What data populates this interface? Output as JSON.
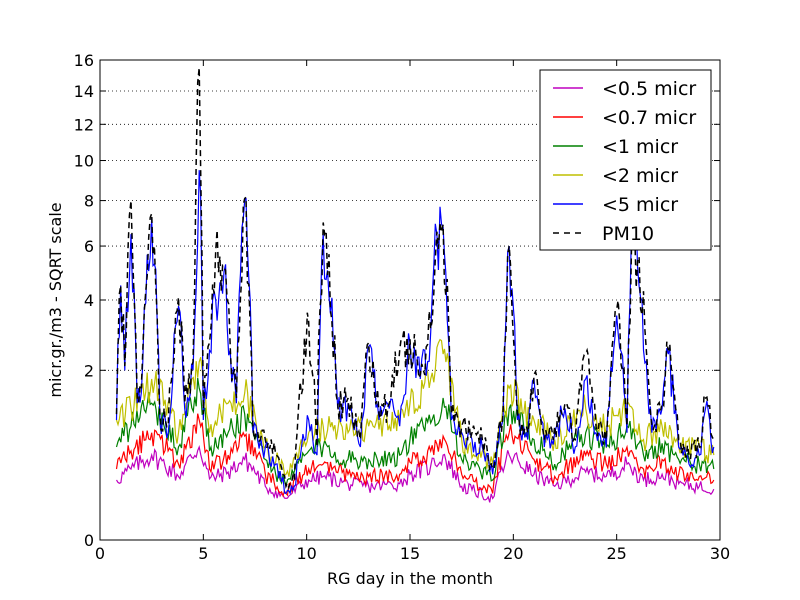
{
  "chart_data": {
    "type": "line",
    "title": "",
    "xlabel": "RG day in the month",
    "ylabel": "micr.gr./m3 - SQRT scale",
    "y_scale": "sqrt",
    "xlim": [
      0,
      30
    ],
    "ylim": [
      0,
      16
    ],
    "x_ticks": [
      0,
      5,
      10,
      15,
      20,
      25,
      30
    ],
    "y_ticks": [
      0,
      2,
      4,
      6,
      8,
      10,
      12,
      14,
      16
    ],
    "grid": "horizontal dotted",
    "legend_position": "top-right",
    "series": [
      {
        "name": "<0.5 micr",
        "color": "#bf00bf",
        "style": "solid",
        "scale": 0.05,
        "x": [
          0.8,
          1.5,
          2.5,
          3.8,
          4.8,
          5.3,
          6.2,
          7.0,
          8.0,
          9.0,
          10.1,
          10.8,
          12.0,
          13.0,
          14.5,
          15.0,
          16.0,
          16.6,
          17.5,
          19.0,
          19.8,
          21.0,
          22.0,
          23.5,
          24.5,
          25.5,
          26.3,
          27.2,
          28.0,
          29.0,
          29.7
        ],
        "values": [
          0.25,
          0.35,
          0.5,
          0.28,
          0.6,
          0.26,
          0.32,
          0.45,
          0.2,
          0.12,
          0.25,
          0.28,
          0.22,
          0.2,
          0.22,
          0.3,
          0.38,
          0.5,
          0.2,
          0.12,
          0.5,
          0.3,
          0.2,
          0.32,
          0.28,
          0.4,
          0.25,
          0.3,
          0.22,
          0.2,
          0.18
        ]
      },
      {
        "name": "<0.7 micr",
        "color": "#ff0000",
        "style": "solid",
        "scale": 0.12,
        "x": [
          0.8,
          1.5,
          2.5,
          3.8,
          4.8,
          5.3,
          6.2,
          7.0,
          8.0,
          9.0,
          10.1,
          10.8,
          12.0,
          13.0,
          14.5,
          15.0,
          16.0,
          16.6,
          17.5,
          19.0,
          19.8,
          21.0,
          22.0,
          23.5,
          24.5,
          25.5,
          26.3,
          27.2,
          28.0,
          29.0,
          29.7
        ],
        "values": [
          0.35,
          0.55,
          0.8,
          0.4,
          1.0,
          0.35,
          0.5,
          0.75,
          0.3,
          0.15,
          0.35,
          0.4,
          0.3,
          0.28,
          0.3,
          0.42,
          0.55,
          0.75,
          0.3,
          0.15,
          0.8,
          0.45,
          0.28,
          0.5,
          0.4,
          0.6,
          0.35,
          0.45,
          0.3,
          0.28,
          0.25
        ]
      },
      {
        "name": "<1 micr",
        "color": "#008000",
        "style": "solid",
        "scale": 0.24,
        "x": [
          0.8,
          1.5,
          2.5,
          3.8,
          4.8,
          5.3,
          6.2,
          7.0,
          8.0,
          9.0,
          10.1,
          10.8,
          12.0,
          13.0,
          14.5,
          15.0,
          16.0,
          16.6,
          17.5,
          19.0,
          19.8,
          21.0,
          22.0,
          23.5,
          24.5,
          25.5,
          26.3,
          27.2,
          28.0,
          29.0,
          29.7
        ],
        "values": [
          0.6,
          0.9,
          1.3,
          0.6,
          1.6,
          0.55,
          0.8,
          1.1,
          0.45,
          0.2,
          0.55,
          0.6,
          0.45,
          0.45,
          0.5,
          0.7,
          0.95,
          1.4,
          0.45,
          0.25,
          1.2,
          0.7,
          0.4,
          0.8,
          0.6,
          0.9,
          0.5,
          0.65,
          0.45,
          0.4,
          0.35
        ]
      },
      {
        "name": "<2 micr",
        "color": "#bfbf00",
        "style": "solid",
        "scale": 0.45,
        "x": [
          0.8,
          1.5,
          2.5,
          3.8,
          4.8,
          5.3,
          6.2,
          7.0,
          8.0,
          9.0,
          10.1,
          10.8,
          12.0,
          13.0,
          14.5,
          15.0,
          16.0,
          16.6,
          17.5,
          19.0,
          19.8,
          21.0,
          22.0,
          23.5,
          24.5,
          25.5,
          26.3,
          27.2,
          28.0,
          29.0,
          29.7
        ],
        "values": [
          1.0,
          1.2,
          1.8,
          0.8,
          2.2,
          0.8,
          1.3,
          1.5,
          0.6,
          0.3,
          0.8,
          0.9,
          0.8,
          0.9,
          1.0,
          1.3,
          1.8,
          2.4,
          0.7,
          0.4,
          1.6,
          1.0,
          0.7,
          1.2,
          0.9,
          1.3,
          0.7,
          0.9,
          0.6,
          0.6,
          0.5
        ]
      },
      {
        "name": "<5 micr",
        "color": "#0000ff",
        "style": "solid",
        "scale": 1.0,
        "x": [
          0.8,
          1.0,
          1.2,
          1.5,
          1.8,
          2.0,
          2.5,
          2.9,
          3.3,
          3.8,
          4.1,
          4.5,
          4.8,
          5.0,
          5.3,
          5.6,
          6.0,
          6.3,
          6.6,
          7.0,
          7.4,
          8.0,
          8.5,
          9.0,
          9.4,
          10.1,
          10.5,
          10.8,
          11.5,
          12.0,
          12.6,
          13.0,
          13.5,
          14.0,
          14.5,
          15.0,
          15.5,
          16.0,
          16.3,
          16.6,
          17.0,
          17.5,
          18.0,
          18.5,
          19.0,
          19.5,
          19.8,
          20.2,
          20.7,
          21.0,
          21.5,
          22.0,
          22.5,
          23.0,
          23.5,
          24.0,
          24.5,
          25.0,
          25.5,
          25.8,
          26.3,
          26.7,
          27.2,
          27.5,
          28.0,
          28.5,
          29.0,
          29.3,
          29.7
        ],
        "values": [
          1.0,
          4.5,
          2.0,
          6.5,
          1.3,
          1.5,
          7.2,
          1.0,
          0.8,
          3.8,
          1.2,
          2.0,
          9.5,
          1.0,
          2.5,
          4.0,
          5.0,
          2.5,
          1.3,
          8.0,
          0.8,
          0.6,
          0.4,
          0.15,
          0.2,
          1.0,
          0.5,
          6.5,
          1.2,
          1.3,
          0.6,
          2.6,
          1.0,
          1.2,
          0.9,
          2.7,
          1.8,
          3.0,
          6.5,
          6.8,
          1.0,
          0.8,
          0.7,
          0.6,
          0.3,
          1.0,
          6.0,
          1.0,
          0.7,
          1.8,
          0.6,
          0.8,
          1.2,
          0.6,
          1.8,
          0.8,
          0.6,
          3.5,
          0.8,
          8.0,
          2.5,
          0.8,
          1.2,
          2.4,
          0.6,
          0.4,
          0.5,
          1.2,
          0.6
        ]
      },
      {
        "name": "PM10",
        "color": "#000000",
        "style": "dashed",
        "scale": 1.0,
        "x": [
          0.8,
          1.0,
          1.2,
          1.5,
          1.8,
          2.0,
          2.5,
          2.9,
          3.3,
          3.8,
          4.1,
          4.5,
          4.8,
          5.0,
          5.3,
          5.6,
          6.0,
          6.3,
          6.6,
          7.0,
          7.4,
          8.0,
          8.5,
          9.0,
          9.4,
          10.1,
          10.5,
          10.8,
          11.5,
          12.0,
          12.6,
          13.0,
          13.5,
          14.0,
          14.5,
          15.0,
          15.5,
          16.0,
          16.3,
          16.6,
          17.0,
          17.5,
          18.0,
          18.5,
          19.0,
          19.5,
          19.8,
          20.2,
          20.7,
          21.0,
          21.5,
          22.0,
          22.5,
          23.0,
          23.5,
          24.0,
          24.5,
          25.0,
          25.5,
          25.8,
          26.3,
          26.7,
          27.2,
          27.5,
          28.0,
          28.5,
          29.0,
          29.3,
          29.7
        ],
        "values": [
          1.1,
          4.5,
          2.1,
          8.0,
          1.4,
          1.6,
          7.4,
          1.1,
          0.9,
          4.1,
          1.3,
          2.2,
          15.5,
          1.1,
          2.7,
          5.8,
          5.2,
          2.6,
          1.4,
          8.1,
          0.9,
          0.7,
          0.5,
          0.2,
          0.25,
          3.3,
          0.6,
          7.0,
          1.3,
          1.4,
          0.7,
          2.7,
          1.1,
          1.3,
          2.5,
          2.8,
          1.9,
          3.1,
          6.6,
          6.9,
          1.1,
          0.9,
          0.8,
          0.7,
          0.35,
          1.1,
          6.0,
          1.1,
          0.8,
          1.9,
          0.7,
          0.9,
          1.3,
          0.7,
          2.4,
          0.9,
          0.7,
          3.7,
          0.9,
          6.5,
          4.3,
          0.9,
          1.3,
          2.5,
          0.7,
          0.5,
          0.6,
          1.4,
          0.7
        ]
      }
    ]
  }
}
